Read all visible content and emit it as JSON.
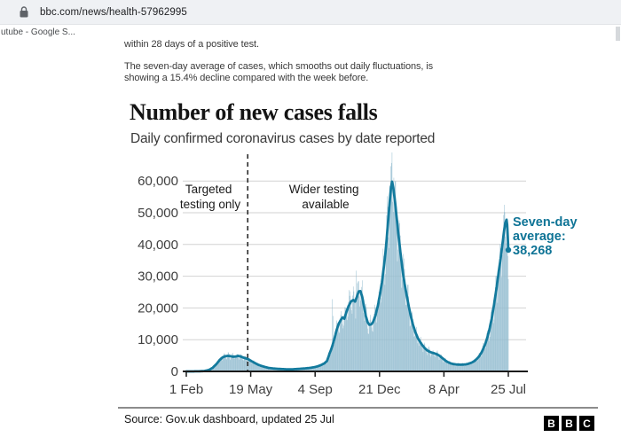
{
  "browser": {
    "url": "bbc.com/news/health-57962995",
    "bookmark": "utube - Google S..."
  },
  "article": {
    "p1": "within 28 days of a positive test.",
    "p2_line1": "The seven-day average of cases, which smooths out daily fluctuations, is",
    "p2_line2": "showing a 15.4% decline compared with the week before."
  },
  "chart": {
    "title": "Number of new cases falls",
    "subtitle": "Daily confirmed coronavirus cases by date reported",
    "annotations": {
      "targeted": [
        "Targeted",
        "testing only"
      ],
      "wider": [
        "Wider testing",
        "available"
      ]
    },
    "avg_label": [
      "Seven-day",
      "average:",
      "38,268"
    ],
    "source": "Source: Gov.uk dashboard, updated 25 Jul",
    "logo": [
      "B",
      "B",
      "C"
    ]
  },
  "chart_data": {
    "type": "bar+line",
    "title": "Number of new cases falls",
    "subtitle": "Daily confirmed coronavirus cases by date reported",
    "x_unit": "days since 1 Feb 2020",
    "x_ticks": [
      {
        "label": "1 Feb",
        "day": 0
      },
      {
        "label": "19 May",
        "day": 108
      },
      {
        "label": "4 Sep",
        "day": 216
      },
      {
        "label": "21 Dec",
        "day": 324
      },
      {
        "label": "8 Apr",
        "day": 432
      },
      {
        "label": "25 Jul",
        "day": 540
      }
    ],
    "y_ticks": [
      {
        "v": 0,
        "label": "0"
      },
      {
        "v": 10000,
        "label": "10,000"
      },
      {
        "v": 20000,
        "label": "20,000"
      },
      {
        "v": 30000,
        "label": "30,000"
      },
      {
        "v": 40000,
        "label": "40,000"
      },
      {
        "v": 50000,
        "label": "50,000"
      },
      {
        "v": 60000,
        "label": "60,000"
      }
    ],
    "ylim": [
      0,
      69000
    ],
    "grid": true,
    "divider_day": 103,
    "end_point": {
      "day": 540,
      "value": 38268
    },
    "seven_day_average": [
      [
        0,
        0
      ],
      [
        20,
        20
      ],
      [
        30,
        120
      ],
      [
        38,
        450
      ],
      [
        44,
        1100
      ],
      [
        50,
        2200
      ],
      [
        56,
        3600
      ],
      [
        61,
        4450
      ],
      [
        65,
        4750
      ],
      [
        69,
        4900
      ],
      [
        74,
        4800
      ],
      [
        79,
        4600
      ],
      [
        83,
        4700
      ],
      [
        87,
        4900
      ],
      [
        91,
        4700
      ],
      [
        95,
        4400
      ],
      [
        99,
        4150
      ],
      [
        103,
        3900
      ],
      [
        107,
        3500
      ],
      [
        111,
        3050
      ],
      [
        115,
        2650
      ],
      [
        120,
        2150
      ],
      [
        125,
        1800
      ],
      [
        131,
        1450
      ],
      [
        138,
        1100
      ],
      [
        146,
        920
      ],
      [
        154,
        800
      ],
      [
        162,
        720
      ],
      [
        170,
        660
      ],
      [
        178,
        670
      ],
      [
        186,
        760
      ],
      [
        194,
        870
      ],
      [
        202,
        1000
      ],
      [
        209,
        1150
      ],
      [
        215,
        1350
      ],
      [
        221,
        1650
      ],
      [
        227,
        2100
      ],
      [
        232,
        2600
      ],
      [
        236,
        3300
      ],
      [
        240,
        5500
      ],
      [
        244,
        7500
      ],
      [
        248,
        10000
      ],
      [
        252,
        13000
      ],
      [
        256,
        15200
      ],
      [
        260,
        16500
      ],
      [
        262,
        17000
      ],
      [
        265,
        16600
      ],
      [
        268,
        18500
      ],
      [
        272,
        20500
      ],
      [
        276,
        22000
      ],
      [
        280,
        22500
      ],
      [
        283,
        22000
      ],
      [
        286,
        23500
      ],
      [
        289,
        25200
      ],
      [
        292,
        25300
      ],
      [
        295,
        23500
      ],
      [
        298,
        20500
      ],
      [
        301,
        17500
      ],
      [
        304,
        15500
      ],
      [
        307,
        14700
      ],
      [
        310,
        14800
      ],
      [
        313,
        15500
      ],
      [
        317,
        17500
      ],
      [
        321,
        20500
      ],
      [
        325,
        24500
      ],
      [
        328,
        28000
      ],
      [
        331,
        32500
      ],
      [
        334,
        37500
      ],
      [
        337,
        44000
      ],
      [
        340,
        51000
      ],
      [
        343,
        57500
      ],
      [
        345,
        59800
      ],
      [
        347,
        58000
      ],
      [
        350,
        53500
      ],
      [
        353,
        48000
      ],
      [
        356,
        42500
      ],
      [
        360,
        36000
      ],
      [
        364,
        30000
      ],
      [
        368,
        25500
      ],
      [
        372,
        21500
      ],
      [
        376,
        17800
      ],
      [
        380,
        14800
      ],
      [
        384,
        12400
      ],
      [
        388,
        10600
      ],
      [
        392,
        9300
      ],
      [
        396,
        8200
      ],
      [
        400,
        7300
      ],
      [
        404,
        6600
      ],
      [
        408,
        6200
      ],
      [
        412,
        5900
      ],
      [
        416,
        5700
      ],
      [
        420,
        5400
      ],
      [
        424,
        5000
      ],
      [
        428,
        4400
      ],
      [
        432,
        3800
      ],
      [
        436,
        3200
      ],
      [
        440,
        2800
      ],
      [
        444,
        2500
      ],
      [
        448,
        2300
      ],
      [
        452,
        2200
      ],
      [
        456,
        2150
      ],
      [
        460,
        2100
      ],
      [
        464,
        2150
      ],
      [
        468,
        2200
      ],
      [
        472,
        2350
      ],
      [
        476,
        2600
      ],
      [
        480,
        2900
      ],
      [
        484,
        3400
      ],
      [
        488,
        4100
      ],
      [
        492,
        5000
      ],
      [
        496,
        6300
      ],
      [
        500,
        8000
      ],
      [
        504,
        10200
      ],
      [
        508,
        13000
      ],
      [
        512,
        16500
      ],
      [
        516,
        21000
      ],
      [
        520,
        26000
      ],
      [
        524,
        31500
      ],
      [
        527,
        35500
      ],
      [
        530,
        40000
      ],
      [
        533,
        44500
      ],
      [
        535,
        46800
      ],
      [
        537,
        47800
      ],
      [
        538,
        46200
      ],
      [
        539,
        42800
      ],
      [
        540,
        38268
      ]
    ],
    "daily_jitter": {
      "weekly_amplitude": 0.2,
      "noise_amplitude": 0.16,
      "phase": 0.9,
      "spikes": {
        "245": 2.8,
        "246": 2.0,
        "285": 1.38,
        "341": 1.1,
        "344": 1.12,
        "348": 1.08,
        "533": 1.18,
        "534": 1.1,
        "539": 0.85,
        "540": 0.76
      }
    },
    "colors": {
      "bar": "#8db9cd",
      "area": "#c9dde8",
      "line": "#137a9d",
      "annotation": "#1a1a1a",
      "avg_label": "#0f7496"
    }
  }
}
